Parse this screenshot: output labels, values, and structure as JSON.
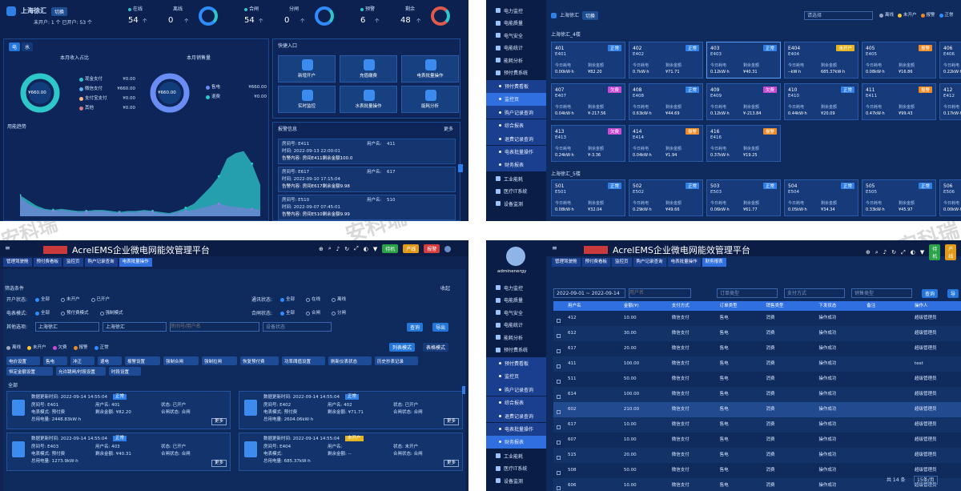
{
  "watermark": "安科瑞",
  "q1": {
    "location": "上海徐汇",
    "switch": "切换",
    "counts": "未开户: 1 个   已开户: 53 个",
    "stats": [
      {
        "l1": "在线",
        "v1": "54",
        "l2": "离线",
        "v2": "0"
      },
      {
        "l1": "合闸",
        "v1": "54",
        "l2": "分闸",
        "v2": "0"
      },
      {
        "l1": "预警",
        "v1": "6",
        "l2": "剩余",
        "v2": "48"
      }
    ],
    "unit": "个",
    "tabs": [
      "电",
      "水"
    ],
    "income_title": "本月收入占比",
    "sales_title": "本月销售量",
    "income_center": "¥660.00",
    "sales_center": "¥660.00",
    "income_items": [
      {
        "name": "现金支付",
        "value": "¥0.00",
        "color": "#2ec7c9"
      },
      {
        "name": "微信支付",
        "value": "¥660.00",
        "color": "#5ab1ef"
      },
      {
        "name": "支付宝支付",
        "value": "¥0.00",
        "color": "#ffb980"
      },
      {
        "name": "其他",
        "value": "¥0.00",
        "color": "#d87a80"
      }
    ],
    "sales_items": [
      {
        "name": "售电",
        "value": "¥660.00"
      },
      {
        "name": "退费",
        "value": "¥0.00"
      }
    ],
    "trend_title": "用能趋势",
    "quick_title": "快捷入口",
    "quick": [
      "新增开户",
      "充值缴费",
      "电表批量操作",
      "实时监控",
      "水表批量操作",
      "能耗分析"
    ],
    "alarm_title": "报警信息",
    "more": "更多",
    "alarms": [
      {
        "room": "房间号: E411",
        "user_label": "用户名:",
        "user": "411",
        "time": "时间:  2022-09-13 22:00:01",
        "content": "告警内容: 房间E411剩余金额100.0"
      },
      {
        "room": "房间号: E617",
        "user_label": "用户名:",
        "user": "617",
        "time": "时间:  2022-09-10 17:15:04",
        "content": "告警内容: 房间E617剩余金额9.98"
      },
      {
        "room": "房间号: E510",
        "user_label": "用户名:",
        "user": "510",
        "time": "时间:  2022-09-07 07:45:01",
        "content": "告警内容: 房间E510剩余金额9.99"
      }
    ]
  },
  "q2": {
    "menu": [
      "电力监控",
      "电能质量",
      "电气安全",
      "电能统计",
      "能耗分析",
      "预付费系统"
    ],
    "submenu": [
      "预付费看板",
      "监控页",
      "购户记录查询",
      "综合报表",
      "退费记录查询",
      "电表批量操作",
      "财务报表"
    ],
    "active_sub": "监控页",
    "menu2": [
      "工业能耗",
      "医疗IT系统",
      "设备监测"
    ],
    "location": "上海徐汇",
    "switch": "切换",
    "filter_placeholder": "请选择",
    "legend": [
      {
        "t": "离线",
        "c": "#9aa7bd"
      },
      {
        "t": "未开户",
        "c": "#f7c531"
      },
      {
        "t": "报警",
        "c": "#f08a24"
      },
      {
        "t": "正常",
        "c": "#2f8cff"
      }
    ],
    "floor4": "上海徐汇_4楼",
    "floor5": "上海徐汇_5楼",
    "labels": {
      "today": "今日耗电",
      "balance": "剩余金额"
    },
    "rooms4": [
      {
        "no": "401",
        "code": "E401",
        "tag": "正常",
        "c": "#2f7fe6",
        "a": "0.00kW·h",
        "b": "¥82.20"
      },
      {
        "no": "402",
        "code": "E402",
        "tag": "正常",
        "c": "#2f7fe6",
        "a": "0.7kW·h",
        "b": "¥71.71"
      },
      {
        "no": "403",
        "code": "E403",
        "tag": "正常",
        "c": "#2f7fe6",
        "a": "0.12kW·h",
        "b": "¥40.31"
      },
      {
        "no": "E404",
        "code": "E404",
        "tag": "未开户",
        "c": "#e6b422",
        "a": "--kW·h",
        "b": "685.37kW·h"
      },
      {
        "no": "405",
        "code": "E405",
        "tag": "报警",
        "c": "#f08a24",
        "a": "0.08kW·h",
        "b": "¥16.86"
      },
      {
        "no": "406",
        "code": "E406",
        "tag": "",
        "c": "#2f7fe6",
        "a": "0.22kW·h",
        "b": ""
      },
      {
        "no": "407",
        "code": "E407",
        "tag": "欠费",
        "c": "#c84bd2",
        "a": "0.04kW·h",
        "b": "¥-217.56"
      },
      {
        "no": "408",
        "code": "E408",
        "tag": "正常",
        "c": "#2f7fe6",
        "a": "0.63kW·h",
        "b": "¥44.69"
      },
      {
        "no": "409",
        "code": "E409",
        "tag": "欠费",
        "c": "#c84bd2",
        "a": "0.12kW·h",
        "b": "¥-213.84"
      },
      {
        "no": "410",
        "code": "E410",
        "tag": "正常",
        "c": "#2f7fe6",
        "a": "0.44kW·h",
        "b": "¥20.09"
      },
      {
        "no": "411",
        "code": "E411",
        "tag": "报警",
        "c": "#f08a24",
        "a": "0.47kW·h",
        "b": "¥99.43"
      },
      {
        "no": "412",
        "code": "E412",
        "tag": "",
        "c": "#2f7fe6",
        "a": "0.17kW·h",
        "b": ""
      },
      {
        "no": "413",
        "code": "E413",
        "tag": "欠费",
        "c": "#c84bd2",
        "a": "0.24kW·h",
        "b": "¥-3.36"
      },
      {
        "no": "414",
        "code": "E414",
        "tag": "报警",
        "c": "#f08a24",
        "a": "0.04kW·h",
        "b": "¥1.94"
      },
      {
        "no": "416",
        "code": "E416",
        "tag": "报警",
        "c": "#f08a24",
        "a": "0.37kW·h",
        "b": "¥19.25"
      }
    ],
    "rooms5": [
      {
        "no": "501",
        "code": "E501",
        "tag": "正常",
        "c": "#2f7fe6",
        "a": "0.08kW·h",
        "b": "¥32.04"
      },
      {
        "no": "502",
        "code": "E502",
        "tag": "正常",
        "c": "#2f7fe6",
        "a": "0.29kW·h",
        "b": "¥49.66"
      },
      {
        "no": "503",
        "code": "E503",
        "tag": "正常",
        "c": "#2f7fe6",
        "a": "0.06kW·h",
        "b": "¥61.77"
      },
      {
        "no": "504",
        "code": "E504",
        "tag": "正常",
        "c": "#2f7fe6",
        "a": "0.05kW·h",
        "b": "¥34.34"
      },
      {
        "no": "505",
        "code": "E505",
        "tag": "正常",
        "c": "#2f7fe6",
        "a": "0.33kW·h",
        "b": "¥45.97"
      },
      {
        "no": "506",
        "code": "E506",
        "tag": "",
        "c": "#2f7fe6",
        "a": "0.00kW·h",
        "b": ""
      }
    ]
  },
  "q3": {
    "app_title": "AcrelEMS企业微电网能效管理平台",
    "badges": [
      "待机",
      "产线",
      "报警"
    ],
    "tabs": [
      "管理驾驶舱",
      "预付费看板",
      "监控页",
      "购户记录查询",
      "电表批量操作"
    ],
    "filter_title": "筛选条件",
    "collapse": "收起",
    "r1_label": "开户状态:",
    "r1_opts": [
      "全部",
      "未开户",
      "已开户"
    ],
    "r1b_label": "通讯状态:",
    "r1b_opts": [
      "全部",
      "在线",
      "离线"
    ],
    "r2_label": "电表模式:",
    "r2_opts": [
      "全部",
      "预付费模式",
      "强制模式"
    ],
    "r2b_label": "合闸状态:",
    "r2b_opts": [
      "全部",
      "合闸",
      "分闸"
    ],
    "r3_label": "其他选项:",
    "sel1": "上海徐汇",
    "sel2": "上海徐汇",
    "ph_room": "房间号/用户名",
    "ph_status": "设备状态",
    "query": "查询",
    "export": "导出",
    "legend": [
      "离线",
      "未开户",
      "欠费",
      "报警",
      "正常"
    ],
    "mode1": "列表模式",
    "mode2": "表格模式",
    "ops": [
      "电价设置",
      "售电",
      "冲正",
      "退电",
      "报警设置",
      "强制合闸",
      "强制拉闸",
      "恢复预付费",
      "功率阈值设置",
      "刷新仪表状态",
      "历史抄表记录",
      "恒定金额设置",
      "允许跳闸/时段设置",
      "时段设置"
    ],
    "all": "全部",
    "meters": [
      {
        "update": "数据更新时间:  2022-09-14 14:55:04",
        "tag": "正常",
        "room": "房间号: E401",
        "user": "用户名: 401",
        "state": "状态: 已开户",
        "mode": "电表模式: 预付费",
        "bal": "剩余金额: ¥82.20",
        "sw": "合闸状态: 合闸",
        "total": "总用电量: 2448.83kW·h",
        "more": "更多"
      },
      {
        "update": "数据更新时间:  2022-09-14 14:55:04",
        "tag": "正常",
        "room": "房间号: E402",
        "user": "用户名: 402",
        "state": "状态: 已开户",
        "mode": "电表模式: 预付费",
        "bal": "剩余金额: ¥71.71",
        "sw": "合闸状态: 合闸",
        "total": "总用电量: 2604.06kW·h",
        "more": "更多"
      },
      {
        "update": "数据更新时间:  2022-09-14 14:55:04",
        "tag": "正常",
        "room": "房间号: E403",
        "user": "用户名: 403",
        "state": "状态: 已开户",
        "mode": "电表模式: 预付费",
        "bal": "剩余金额: ¥40.31",
        "sw": "合闸状态: 合闸",
        "total": "总用电量: 1273.9kW·h",
        "more": "更多"
      },
      {
        "update": "数据更新时间:  2022-09-14 14:55:04",
        "tag": "未开户",
        "room": "房间号: E404",
        "user": "用户名:",
        "state": "状态: 未开户",
        "mode": "电表模式:",
        "bal": "剩余金额: --",
        "sw": "合闸状态: 合闸",
        "total": "总用电量: 685.37kW·h",
        "more": "更多"
      }
    ]
  },
  "q4": {
    "app_title": "AcrelEMS企业微电网能效管理平台",
    "user": "adminenergy",
    "badges": [
      "待机",
      "产线",
      "报警"
    ],
    "tabs": [
      "管理驾驶舱",
      "预付费看板",
      "监控页",
      "购户记录查询",
      "电表批量操作",
      "财务报表"
    ],
    "menu": [
      "电力监控",
      "电能质量",
      "电气安全",
      "电能统计",
      "能耗分析",
      "预付费系统"
    ],
    "submenu": [
      "预付费看板",
      "监控页",
      "购户记录查询",
      "综合报表",
      "退费记录查询",
      "电表批量操作",
      "财务报表"
    ],
    "active_sub": "财务报表",
    "menu2": [
      "工业能耗",
      "医疗IT系统",
      "设备监测"
    ],
    "date_range": "2022-09-01 ~ 2022-09-14",
    "ph_user": "用户名",
    "ph_order": "订单类型",
    "ph_pay": "支付方式",
    "ph_sale": "销售类型",
    "query": "查询",
    "export": "导",
    "headers": [
      "用户名",
      "金额(¥)",
      "支付方式",
      "订单类型",
      "销售类型",
      "下发状态",
      "备注",
      "操作人"
    ],
    "rows": [
      [
        "412",
        "10.00",
        "微信支付",
        "售电",
        "消费",
        "操作成功",
        "",
        "超级管理员"
      ],
      [
        "612",
        "30.00",
        "微信支付",
        "售电",
        "消费",
        "操作成功",
        "",
        "超级管理员"
      ],
      [
        "617",
        "20.00",
        "微信支付",
        "售电",
        "消费",
        "操作成功",
        "",
        "超级管理员"
      ],
      [
        "411",
        "100.00",
        "微信支付",
        "售电",
        "消费",
        "操作成功",
        "",
        "test"
      ],
      [
        "511",
        "50.00",
        "微信支付",
        "售电",
        "消费",
        "操作成功",
        "",
        "超级管理员"
      ],
      [
        "614",
        "100.00",
        "微信支付",
        "售电",
        "消费",
        "操作成功",
        "",
        "超级管理员"
      ],
      [
        "602",
        "210.00",
        "微信支付",
        "售电",
        "消费",
        "操作成功",
        "",
        "超级管理员"
      ],
      [
        "617",
        "10.00",
        "微信支付",
        "售电",
        "消费",
        "操作成功",
        "",
        "超级管理员"
      ],
      [
        "607",
        "10.00",
        "微信支付",
        "售电",
        "消费",
        "操作成功",
        "",
        "超级管理员"
      ],
      [
        "515",
        "20.00",
        "微信支付",
        "售电",
        "消费",
        "操作成功",
        "",
        "超级管理员"
      ],
      [
        "508",
        "50.00",
        "微信支付",
        "售电",
        "消费",
        "操作成功",
        "",
        "超级管理员"
      ],
      [
        "606",
        "10.00",
        "微信支付",
        "售电",
        "消费",
        "操作成功",
        "",
        "超级管理员"
      ]
    ],
    "total": "共 14 条",
    "page_size": "15条/页"
  },
  "chart_data": {
    "type": "area",
    "title": "用能趋势",
    "x": [
      "1",
      "2",
      "3",
      "4",
      "5",
      "6",
      "7",
      "8",
      "9",
      "10",
      "11",
      "12",
      "13",
      "14",
      "15",
      "16",
      "17",
      "18",
      "19",
      "20",
      "21",
      "22",
      "23",
      "24",
      "25",
      "26",
      "27",
      "28",
      "29",
      "30"
    ],
    "series": [
      {
        "values": [
          20,
          15,
          10,
          7,
          6,
          7,
          6,
          5,
          5,
          6,
          6,
          5,
          4,
          5,
          5,
          6,
          5,
          4,
          3,
          5,
          8,
          12,
          20,
          28,
          38,
          55,
          60,
          62,
          50,
          30
        ],
        "color": "#2ec7c9"
      },
      {
        "values": [
          18,
          12,
          8,
          6,
          5,
          6,
          5,
          4,
          4,
          5,
          5,
          4,
          3,
          4,
          4,
          5,
          4,
          3,
          2,
          4,
          5,
          6,
          8,
          10,
          12,
          10,
          9,
          8,
          7,
          6
        ],
        "color": "#8f7be8"
      }
    ],
    "ylim": [
      0,
      80
    ],
    "grid": false
  }
}
